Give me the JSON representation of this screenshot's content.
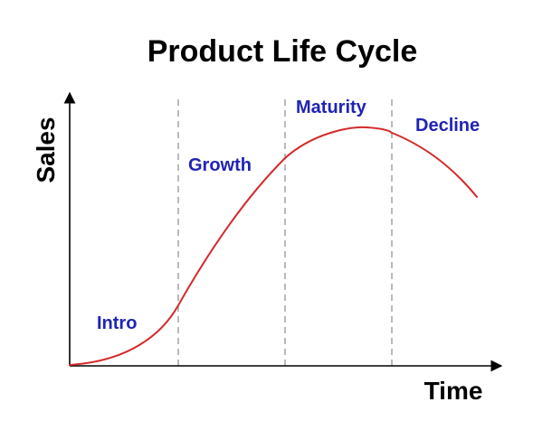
{
  "title": "Product Life Cycle",
  "axes": {
    "x_label": "Time",
    "y_label": "Sales"
  },
  "stages": [
    {
      "name": "Intro"
    },
    {
      "name": "Growth"
    },
    {
      "name": "Maturity"
    },
    {
      "name": "Decline"
    }
  ],
  "colors": {
    "curve": "#d42a2a",
    "stage_label": "#1f24b4",
    "axis": "#000000",
    "divider": "#8c8c8c"
  }
}
